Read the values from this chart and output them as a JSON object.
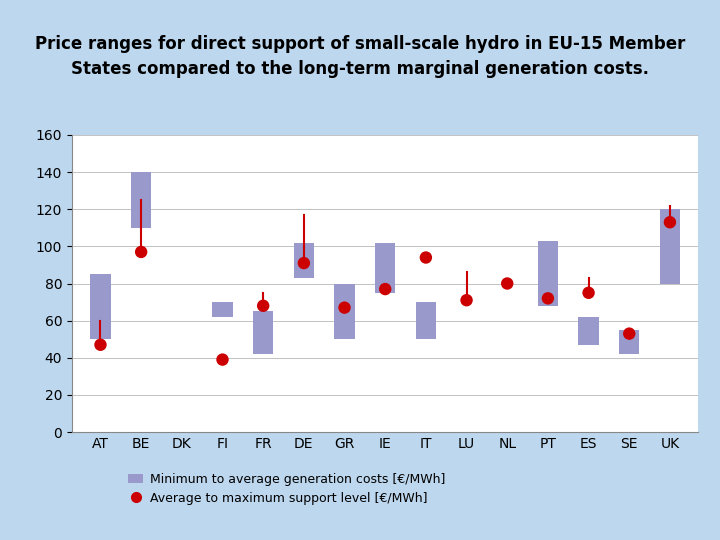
{
  "countries": [
    "AT",
    "BE",
    "DK",
    "FI",
    "FR",
    "DE",
    "GR",
    "IE",
    "IT",
    "LU",
    "NL",
    "PT",
    "ES",
    "SE",
    "UK"
  ],
  "bar_bottom": [
    50,
    110,
    0,
    62,
    42,
    83,
    50,
    75,
    50,
    0,
    0,
    68,
    47,
    42,
    80
  ],
  "bar_top": [
    85,
    140,
    0,
    70,
    65,
    102,
    80,
    102,
    70,
    0,
    0,
    103,
    62,
    55,
    120
  ],
  "dot_avg": [
    47,
    97,
    0,
    39,
    68,
    91,
    67,
    77,
    94,
    71,
    80,
    72,
    75,
    53,
    113
  ],
  "dot_max": [
    60,
    125,
    0,
    39,
    75,
    117,
    67,
    77,
    94,
    86,
    80,
    72,
    83,
    53,
    122
  ],
  "has_bar": [
    true,
    true,
    false,
    true,
    true,
    true,
    true,
    true,
    true,
    false,
    false,
    true,
    true,
    true,
    true
  ],
  "has_dot": [
    true,
    true,
    false,
    true,
    true,
    true,
    true,
    true,
    true,
    true,
    true,
    true,
    true,
    true,
    true
  ],
  "ylim": [
    0,
    160
  ],
  "yticks": [
    0,
    20,
    40,
    60,
    80,
    100,
    120,
    140,
    160
  ],
  "bar_color": "#9999cc",
  "dot_color": "#cc0000",
  "line_color": "#cc0000",
  "background_color": "#bdd7ee",
  "plot_bg_color": "#ffffff",
  "legend_bar": "Minimum to average generation costs [€/MWh]",
  "legend_dot": "Average to maximum support level [€/MWh]",
  "title_fontsize": 12,
  "tick_fontsize": 10,
  "bar_width": 0.5
}
